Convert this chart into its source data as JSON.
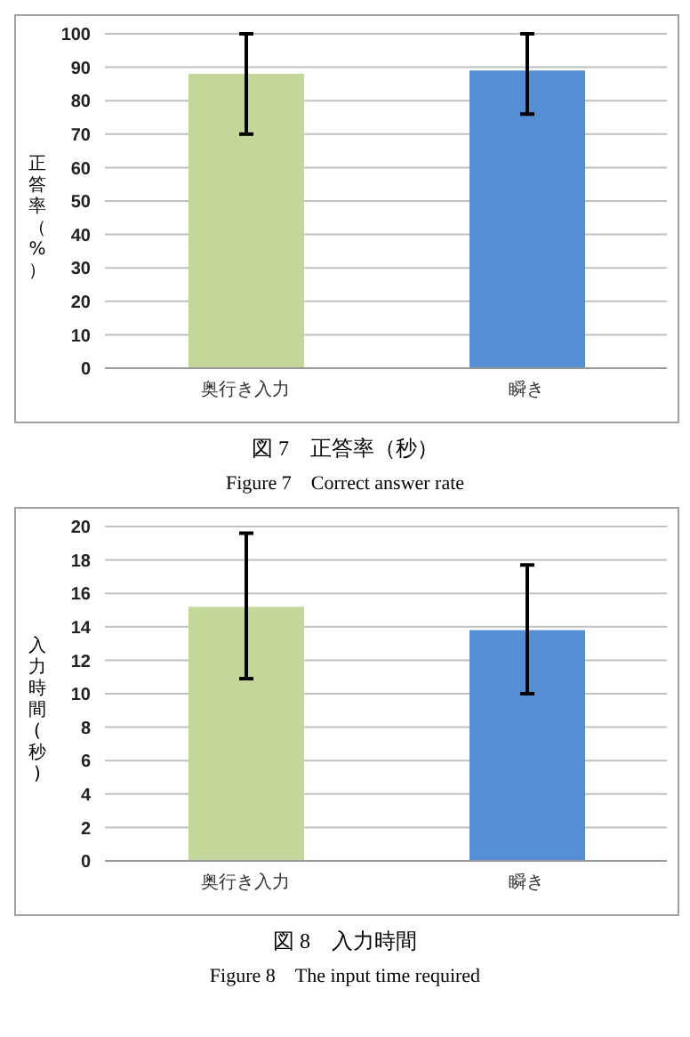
{
  "chart_data": [
    {
      "type": "bar",
      "title": "図 7　正答率（秒）",
      "annotations": [
        "Figure 7　Correct answer rate"
      ],
      "ylabel": "正答率（%）",
      "categories": [
        "奥行き入力",
        "瞬き"
      ],
      "values": [
        88,
        89
      ],
      "colors": [
        "#c4d79b",
        "#558ed5"
      ],
      "errors": [
        [
          70,
          100
        ],
        [
          76,
          100
        ]
      ],
      "ylim": [
        0,
        100
      ],
      "yticks": [
        0,
        10,
        20,
        30,
        40,
        50,
        60,
        70,
        80,
        90,
        100
      ],
      "grid": "y"
    },
    {
      "type": "bar",
      "title": "図 8　入力時間",
      "annotations": [
        "Figure 8　The input time required"
      ],
      "ylabel": "入力時間(秒)",
      "categories": [
        "奥行き入力",
        "瞬き"
      ],
      "values": [
        15.2,
        13.8
      ],
      "colors": [
        "#c4d79b",
        "#558ed5"
      ],
      "errors": [
        [
          10.9,
          19.6
        ],
        [
          10.0,
          17.7
        ]
      ],
      "ylim": [
        0,
        20
      ],
      "yticks": [
        0,
        2,
        4,
        6,
        8,
        10,
        12,
        14,
        16,
        18,
        20
      ],
      "grid": "y"
    }
  ]
}
